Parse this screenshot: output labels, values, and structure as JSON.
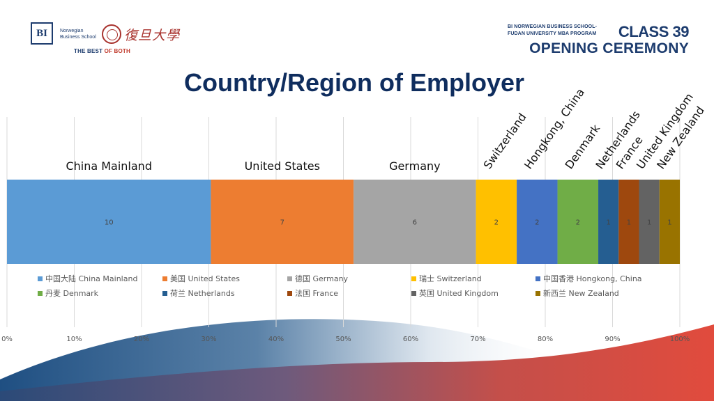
{
  "header": {
    "bi_logo_text": "BI",
    "bi_name_line1": "Norwegian",
    "bi_name_line2": "Business School",
    "fudan_name": "復旦大學",
    "tagline_prefix": "THE BEST ",
    "tagline_accent": "OF BOTH",
    "school_line1": "BI NORWEGIAN BUSINESS SCHOOL-",
    "school_line2": "FUDAN UNIVERSITY MBA PROGRAM",
    "class_label": "CLASS 39",
    "event_label": "OPENING CEREMONY"
  },
  "colors": {
    "title": "#0f2d5e",
    "header_blue": "#1d3c6e",
    "accent_red": "#c0392b"
  },
  "chart_data": {
    "type": "bar",
    "orientation": "horizontal-stacked-100",
    "title": "Country/Region of Employer",
    "series": [
      {
        "name": "中国大陆 China Mainland",
        "value": 10,
        "label": "China Mainland",
        "color": "#5b9bd5"
      },
      {
        "name": "美国 United States",
        "value": 7,
        "label": "United States",
        "color": "#ed7d31"
      },
      {
        "name": "德国 Germany",
        "value": 6,
        "label": "Germany",
        "color": "#a5a5a5"
      },
      {
        "name": "瑞士 Switzerland",
        "value": 2,
        "label": "Switzerland",
        "color": "#ffc000"
      },
      {
        "name": "中国香港 Hongkong, China",
        "value": 2,
        "label": "Hongkong, China",
        "color": "#4472c4"
      },
      {
        "name": "丹麦 Denmark",
        "value": 2,
        "label": "Denmark",
        "color": "#70ad47"
      },
      {
        "name": "荷兰 Netherlands",
        "value": 1,
        "label": "Netherlands",
        "color": "#255e91"
      },
      {
        "name": "法国 France",
        "value": 1,
        "label": "France",
        "color": "#9e480e"
      },
      {
        "name": "英国 United Kingdom",
        "value": 1,
        "label": "United Kingdom",
        "color": "#636363"
      },
      {
        "name": "新西兰 New Zealand",
        "value": 1,
        "label": "New Zealand",
        "color": "#997300"
      }
    ],
    "xlim": [
      0,
      100
    ],
    "x_ticks": [
      "0%",
      "10%",
      "20%",
      "30%",
      "40%",
      "50%",
      "60%",
      "70%",
      "80%",
      "90%",
      "100%"
    ],
    "grid": true,
    "legend_position": "below-bar"
  }
}
